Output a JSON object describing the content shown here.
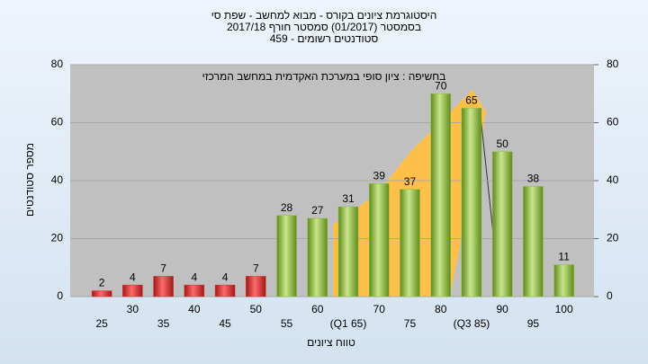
{
  "chart_data": {
    "type": "bar",
    "title": "היסטוגרמת ציונים בקורס - מבוא למחשב - שפת סי",
    "subtitle": [
      "בסמסטר (01/2017) סמסטר חורף 2017/18",
      "סטודנטים רשומים - 459"
    ],
    "annotation": "בחשיפה : ציון סופי במערכת האקדמית במחשב המרכזי",
    "x_label": "טווח ציונים",
    "y_label": "מספר סטודנטים",
    "categories": [
      "25",
      "30",
      "35",
      "40",
      "45",
      "50",
      "55",
      "60",
      "(Q1 65)",
      "70",
      "75",
      "80",
      "(Q3 85)",
      "90",
      "95",
      "100"
    ],
    "values": [
      2,
      4,
      7,
      4,
      4,
      7,
      28,
      27,
      31,
      39,
      37,
      70,
      65,
      50,
      38,
      11
    ],
    "colors": [
      "#e03030",
      "#e03030",
      "#e03030",
      "#e03030",
      "#e03030",
      "#e03030",
      "#8fbf3a",
      "#8fbf3a",
      "#8fbf3a",
      "#8fbf3a",
      "#8fbf3a",
      "#8fbf3a",
      "#8fbf3a",
      "#8fbf3a",
      "#8fbf3a",
      "#8fbf3a"
    ],
    "ylim": [
      0,
      80
    ],
    "yticks": [
      0,
      20,
      40,
      60,
      80
    ],
    "y2lim": [
      0,
      80
    ],
    "y2ticks": [
      0,
      20,
      40,
      60,
      80
    ],
    "grid": true
  }
}
